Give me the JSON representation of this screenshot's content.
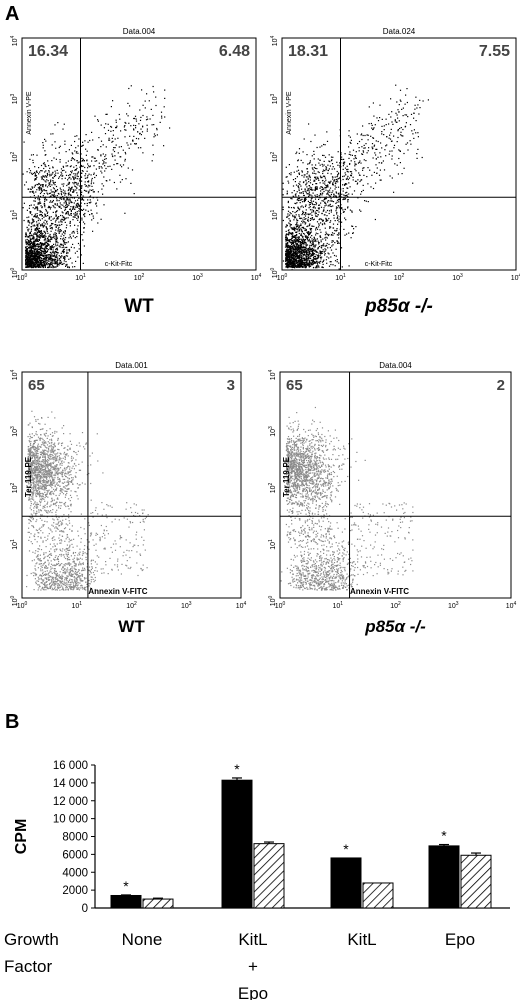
{
  "panels": {
    "a": "A",
    "b": "B"
  },
  "chart_data": [
    {
      "type": "scatter",
      "title": "Data.004",
      "xlabel": "c-Kit-Fitc",
      "ylabel": "Annexin V-PE",
      "scale": "log",
      "xlim": [
        1,
        10000
      ],
      "ylim": [
        1,
        10000
      ],
      "ticks": [
        "10",
        "10",
        "10",
        "10",
        "10"
      ],
      "tick_exponents": [
        "0",
        "1",
        "2",
        "3",
        "4"
      ],
      "gate_x": 10,
      "gate_y": 18,
      "quadrant_upper_left": "16.34",
      "quadrant_upper_right": "6.48",
      "genotype": "WT",
      "point_color": "#000000"
    },
    {
      "type": "scatter",
      "title": "Data.024",
      "xlabel": "c-Kit-Fitc",
      "ylabel": "Annexin V-PE",
      "scale": "log",
      "xlim": [
        1,
        10000
      ],
      "ylim": [
        1,
        10000
      ],
      "ticks": [
        "10",
        "10",
        "10",
        "10",
        "10"
      ],
      "tick_exponents": [
        "0",
        "1",
        "2",
        "3",
        "4"
      ],
      "gate_x": 10,
      "gate_y": 18,
      "quadrant_upper_left": "18.31",
      "quadrant_upper_right": "7.55",
      "genotype": "p85α -/-",
      "point_color": "#000000"
    },
    {
      "type": "scatter",
      "title": "Data.001",
      "xlabel": "Annexin V-FITC",
      "ylabel": "Ter 119-PE",
      "scale": "log",
      "xlim": [
        1,
        10000
      ],
      "ylim": [
        1,
        10000
      ],
      "ticks": [
        "10",
        "10",
        "10",
        "10",
        "10"
      ],
      "tick_exponents": [
        "0",
        "1",
        "2",
        "3",
        "4"
      ],
      "gate_x": 16,
      "gate_y": 28,
      "quadrant_upper_left": "65",
      "quadrant_upper_right": "3",
      "genotype": "WT",
      "point_color": "#8a8a8a"
    },
    {
      "type": "scatter",
      "title": "Data.004",
      "xlabel": "Annexin V-FITC",
      "ylabel": "Ter 119-PE",
      "scale": "log",
      "xlim": [
        1,
        10000
      ],
      "ylim": [
        1,
        10000
      ],
      "ticks": [
        "10",
        "10",
        "10",
        "10",
        "10"
      ],
      "tick_exponents": [
        "0",
        "1",
        "2",
        "3",
        "4"
      ],
      "gate_x": 16,
      "gate_y": 28,
      "quadrant_upper_left": "65",
      "quadrant_upper_right": "2",
      "genotype": "p85α -/-",
      "point_color": "#8a8a8a"
    },
    {
      "type": "bar",
      "ylabel": "CPM",
      "xlabel": "Growth Factor",
      "ylim": [
        0,
        16000
      ],
      "yticks": [
        "0",
        "2000",
        "4000",
        "6000",
        "8000",
        "10 000",
        "12 000",
        "14 000",
        "16 000"
      ],
      "categories": [
        {
          "lines": [
            "None"
          ]
        },
        {
          "lines": [
            "KitL",
            "+",
            "Epo"
          ]
        },
        {
          "lines": [
            "KitL"
          ]
        },
        {
          "lines": [
            "Epo"
          ]
        }
      ],
      "series": [
        {
          "fill": "solid-black",
          "values": [
            1400,
            14300,
            5600,
            6950
          ],
          "errors": [
            60,
            250,
            0,
            150
          ]
        },
        {
          "fill": "diagonal-hatch",
          "values": [
            1000,
            7200,
            2800,
            5900
          ],
          "errors": [
            100,
            180,
            0,
            250
          ]
        }
      ],
      "significance_marker": "*",
      "significance_on": [
        0,
        1,
        2,
        3
      ]
    }
  ]
}
